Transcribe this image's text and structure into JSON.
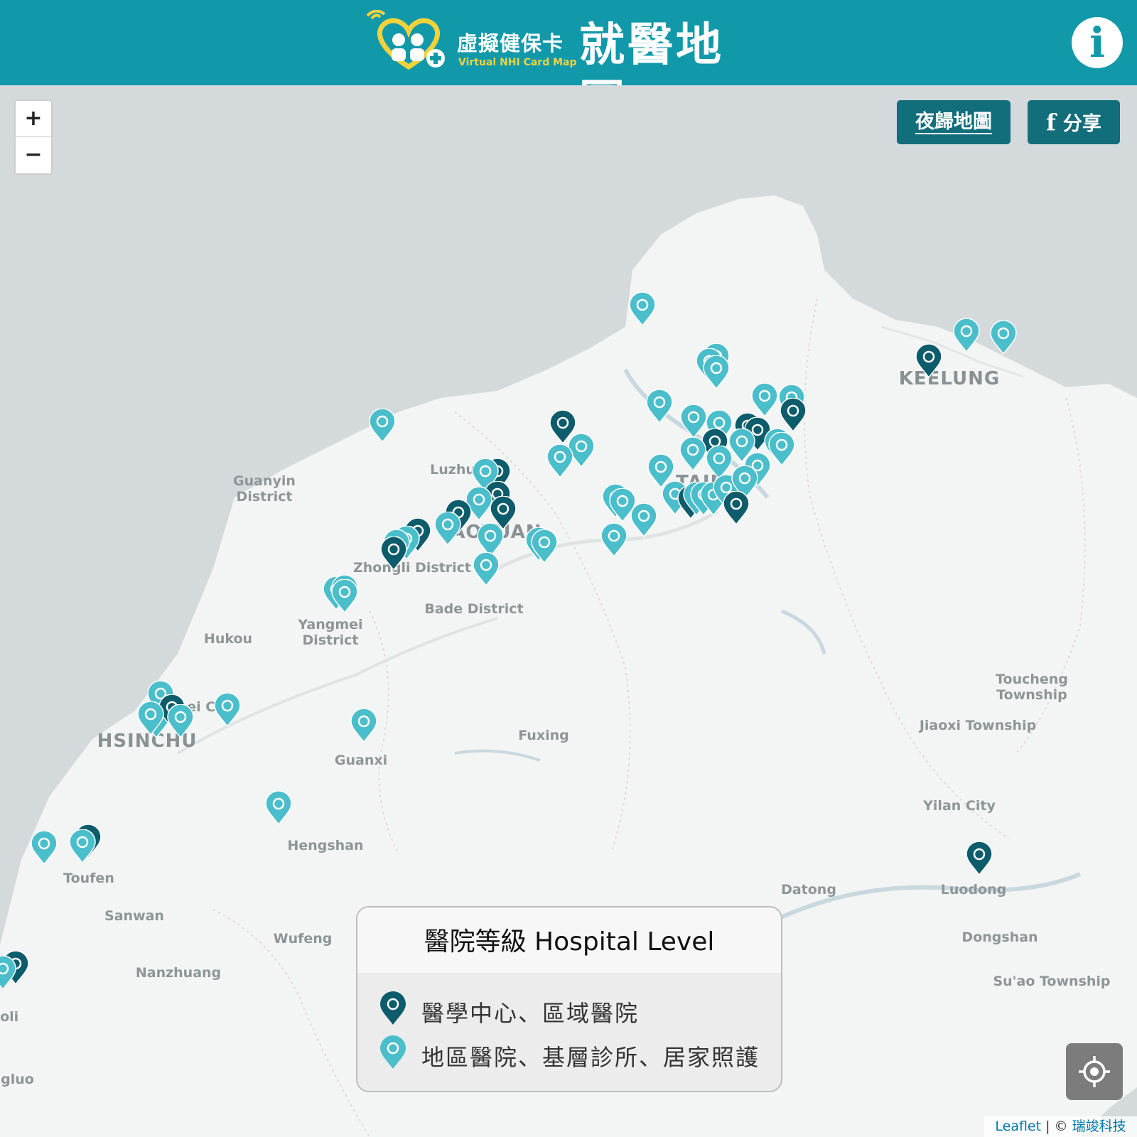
{
  "header": {
    "logo_cn": "虛擬健保卡",
    "logo_en": "Virtual NHI Card Map",
    "logo_title": "就醫地圖",
    "info_icon": "info-icon",
    "info_label": "i"
  },
  "controls": {
    "zoom_in": "+",
    "zoom_out": "−",
    "night_map": "夜歸地圖",
    "share": "分享",
    "share_icon": "facebook-icon",
    "share_icon_glyph": "f",
    "locate_icon": "locate-crosshair-icon"
  },
  "legend": {
    "title": "醫院等級 Hospital Level",
    "items": [
      {
        "label": "醫學中心、區域醫院",
        "color": "#0d5c6b"
      },
      {
        "label": "地區醫院、基層診所、居家照護",
        "color": "#4bbecb"
      }
    ]
  },
  "attribution": {
    "leaflet": "Leaflet",
    "separator": " | © ",
    "provider": "瑞竣科技"
  },
  "colors": {
    "header_bg": "#1199aa",
    "marker_dark": "#0d5c6b",
    "marker_light": "#4bbecb",
    "sea": "#d4dadc",
    "land": "#f3f4f4"
  },
  "places": {
    "keelung": "KEELUNG",
    "taipei": "TAIPEI",
    "taoyuan": "TAOYUAN",
    "hsinchu": "HSINCHU",
    "luzhu": "Luzhu",
    "guanyin": "Guanyin\nDistrict",
    "zhongli": "Zhongli District",
    "bade": "Bade District",
    "yangmei": "Yangmei\nDistrict",
    "hukou": "Hukou",
    "zhubei": "Zhubei City",
    "fuxing": "Fuxing",
    "guanxi": "Guanxi",
    "hengshan": "Hengshan",
    "toucheng": "Toucheng\nTownship",
    "jiaoxi": "Jiaoxi Township",
    "yilan": "Yilan City",
    "datong": "Datong",
    "luodong": "Luodong",
    "dongshan": "Dongshan",
    "suao": "Su'ao Township",
    "toufen": "Toufen",
    "sanwan": "Sanwan",
    "wufeng": "Wufeng",
    "nanzhuang": "Nanzhuang",
    "miaoli": "Miaoli",
    "tongluo": "Tongluo"
  }
}
